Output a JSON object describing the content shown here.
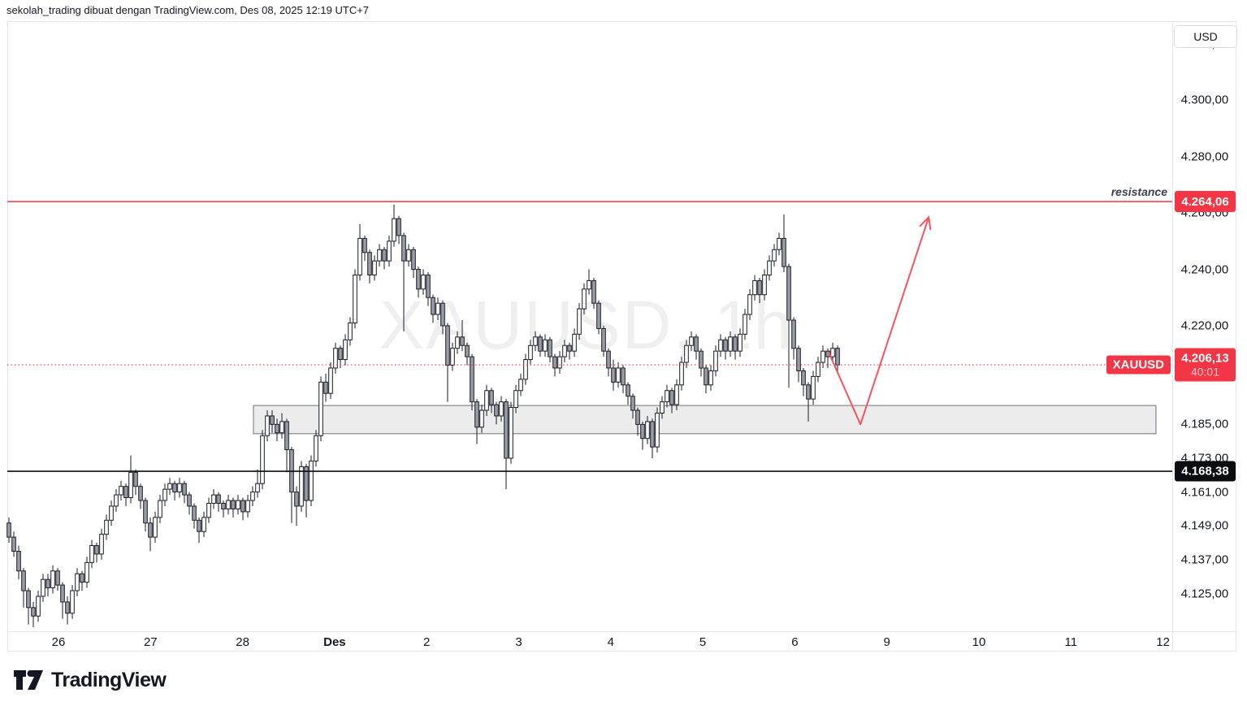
{
  "header": {
    "attribution": "sekolah_trading dibuat dengan TradingView.com, Des 08, 2025 12:19 UTC+7"
  },
  "currency_button": {
    "label": "USD"
  },
  "watermark": "XAUUSD, 1h",
  "footer": {
    "brand": "TradingView"
  },
  "colors": {
    "red": "#f23645",
    "arrow_red": "#f7525f",
    "black_line": "#0c0d12",
    "candle_border": "#181b24",
    "candle_up": "#ffffff",
    "candle_down": "#9a9da6",
    "zone_fill": "#ececec",
    "zone_border": "#6f727d",
    "frame": "#e4e6ee",
    "text": "#131722"
  },
  "chart_data": {
    "type": "candlestick",
    "symbol": "XAUUSD",
    "interval": "1h",
    "title": "XAUUSD, 1h",
    "ylim": [
      4111.6,
      4327.5
    ],
    "grid": false,
    "y_ticks": [
      {
        "price": 4320,
        "label": "4.320,00"
      },
      {
        "price": 4300,
        "label": "4.300,00"
      },
      {
        "price": 4280,
        "label": "4.280,00"
      },
      {
        "price": 4260,
        "label": "4.260,00"
      },
      {
        "price": 4240,
        "label": "4.240,00"
      },
      {
        "price": 4220,
        "label": "4.220,00"
      },
      {
        "price": 4185,
        "label": "4.185,00"
      },
      {
        "price": 4173,
        "label": "4.173,00"
      },
      {
        "price": 4161,
        "label": "4.161,00"
      },
      {
        "price": 4149,
        "label": "4.149,00"
      },
      {
        "price": 4137,
        "label": "4.137,00"
      },
      {
        "price": 4125,
        "label": "4.125,00"
      }
    ],
    "x_ticks": [
      {
        "label": "26"
      },
      {
        "label": "27"
      },
      {
        "label": "28"
      },
      {
        "label": "Des",
        "bold": true
      },
      {
        "label": "2"
      },
      {
        "label": "3"
      },
      {
        "label": "4"
      },
      {
        "label": "5"
      },
      {
        "label": "6"
      },
      {
        "label": "9"
      },
      {
        "label": "10"
      },
      {
        "label": "11"
      },
      {
        "label": "12"
      }
    ],
    "lines": {
      "resistance": {
        "price": 4264.06,
        "label": "resistance",
        "badge": "4.264,06",
        "style": "solid"
      },
      "support": {
        "price": 4168.38,
        "badge": "4.168,38",
        "style": "solid"
      },
      "last_price": {
        "price": 4206.13,
        "badge": "4.206,13",
        "countdown": "40:01",
        "symbol_label": "XAUUSD",
        "style": "dotted"
      }
    },
    "zone": {
      "price_top": 4191.7,
      "price_bottom": 4181.7,
      "from_candle_index": 51
    },
    "arrow": {
      "points": [
        [
          168.2,
          4210.5
        ],
        [
          174.7,
          4185.0
        ],
        [
          188.7,
          4258.5
        ]
      ]
    },
    "candles": [
      [
        4150,
        4152,
        4143,
        4145
      ],
      [
        4145,
        4147,
        4138,
        4140
      ],
      [
        4140,
        4142,
        4130,
        4133
      ],
      [
        4133,
        4134,
        4120,
        4126
      ],
      [
        4126,
        4127,
        4114,
        4120
      ],
      [
        4120,
        4122,
        4113,
        4117
      ],
      [
        4117,
        4126,
        4115,
        4124
      ],
      [
        4124,
        4132,
        4122,
        4130
      ],
      [
        4130,
        4132,
        4124,
        4127
      ],
      [
        4127,
        4135,
        4125,
        4133
      ],
      [
        4133,
        4134,
        4126,
        4128
      ],
      [
        4128,
        4129,
        4116,
        4122
      ],
      [
        4122,
        4124,
        4114,
        4118
      ],
      [
        4118,
        4128,
        4116,
        4126
      ],
      [
        4126,
        4134,
        4124,
        4132
      ],
      [
        4132,
        4133,
        4126,
        4129
      ],
      [
        4129,
        4138,
        4127,
        4136
      ],
      [
        4136,
        4144,
        4134,
        4142
      ],
      [
        4142,
        4143,
        4136,
        4139
      ],
      [
        4139,
        4148,
        4137,
        4146
      ],
      [
        4146,
        4153,
        4144,
        4151
      ],
      [
        4151,
        4158,
        4149,
        4156
      ],
      [
        4156,
        4162,
        4154,
        4160
      ],
      [
        4160,
        4165,
        4158,
        4163
      ],
      [
        4163,
        4164,
        4156,
        4159
      ],
      [
        4159,
        4174,
        4157,
        4168
      ],
      [
        4168,
        4169,
        4160,
        4163
      ],
      [
        4163,
        4164,
        4155,
        4158
      ],
      [
        4158,
        4159,
        4147,
        4150
      ],
      [
        4150,
        4152,
        4140,
        4145
      ],
      [
        4145,
        4154,
        4143,
        4152
      ],
      [
        4152,
        4160,
        4150,
        4158
      ],
      [
        4158,
        4164,
        4156,
        4162
      ],
      [
        4162,
        4166,
        4160,
        4164
      ],
      [
        4164,
        4165,
        4158,
        4161
      ],
      [
        4161,
        4166,
        4159,
        4164
      ],
      [
        4164,
        4165,
        4157,
        4160
      ],
      [
        4160,
        4161,
        4153,
        4156
      ],
      [
        4156,
        4157,
        4148,
        4151
      ],
      [
        4151,
        4152,
        4143,
        4147
      ],
      [
        4147,
        4154,
        4145,
        4152
      ],
      [
        4152,
        4159,
        4150,
        4157
      ],
      [
        4157,
        4162,
        4155,
        4160
      ],
      [
        4160,
        4161,
        4154,
        4157
      ],
      [
        4157,
        4158,
        4152,
        4155
      ],
      [
        4155,
        4160,
        4153,
        4158
      ],
      [
        4158,
        4159,
        4152,
        4155
      ],
      [
        4155,
        4160,
        4153,
        4158
      ],
      [
        4158,
        4159,
        4151,
        4154
      ],
      [
        4154,
        4160,
        4152,
        4158
      ],
      [
        4158,
        4163,
        4156,
        4161
      ],
      [
        4161,
        4169,
        4159,
        4164
      ],
      [
        4164,
        4183,
        4162,
        4181
      ],
      [
        4181,
        4190,
        4179,
        4188
      ],
      [
        4188,
        4190,
        4182,
        4185
      ],
      [
        4185,
        4187,
        4179,
        4182
      ],
      [
        4182,
        4189,
        4180,
        4186
      ],
      [
        4186,
        4187,
        4168,
        4176
      ],
      [
        4176,
        4177,
        4150,
        4161
      ],
      [
        4161,
        4163,
        4149,
        4156
      ],
      [
        4156,
        4172,
        4154,
        4170
      ],
      [
        4170,
        4171,
        4152,
        4158
      ],
      [
        4158,
        4174,
        4156,
        4172
      ],
      [
        4172,
        4183,
        4170,
        4181
      ],
      [
        4181,
        4202,
        4179,
        4200
      ],
      [
        4200,
        4203,
        4193,
        4196
      ],
      [
        4196,
        4207,
        4194,
        4205
      ],
      [
        4205,
        4214,
        4203,
        4212
      ],
      [
        4212,
        4213,
        4205,
        4208
      ],
      [
        4208,
        4217,
        4206,
        4215
      ],
      [
        4215,
        4223,
        4213,
        4221
      ],
      [
        4221,
        4240,
        4219,
        4238
      ],
      [
        4238,
        4256,
        4236,
        4251
      ],
      [
        4251,
        4252,
        4243,
        4246
      ],
      [
        4246,
        4247,
        4235,
        4238
      ],
      [
        4238,
        4245,
        4236,
        4243
      ],
      [
        4243,
        4249,
        4241,
        4247
      ],
      [
        4247,
        4248,
        4240,
        4243
      ],
      [
        4243,
        4252,
        4241,
        4250
      ],
      [
        4250,
        4263,
        4248,
        4258
      ],
      [
        4258,
        4259,
        4249,
        4252
      ],
      [
        4252,
        4253,
        4218,
        4243
      ],
      [
        4243,
        4249,
        4241,
        4247
      ],
      [
        4247,
        4248,
        4237,
        4240
      ],
      [
        4240,
        4241,
        4230,
        4233
      ],
      [
        4233,
        4240,
        4231,
        4238
      ],
      [
        4238,
        4239,
        4227,
        4230
      ],
      [
        4230,
        4231,
        4221,
        4224
      ],
      [
        4224,
        4230,
        4222,
        4228
      ],
      [
        4228,
        4229,
        4217,
        4220
      ],
      [
        4220,
        4221,
        4193,
        4206
      ],
      [
        4206,
        4214,
        4204,
        4212
      ],
      [
        4212,
        4218,
        4210,
        4216
      ],
      [
        4216,
        4222,
        4211,
        4213
      ],
      [
        4213,
        4214,
        4206,
        4209
      ],
      [
        4209,
        4210,
        4190,
        4193
      ],
      [
        4193,
        4194,
        4178,
        4184
      ],
      [
        4184,
        4192,
        4182,
        4190
      ],
      [
        4190,
        4199,
        4188,
        4197
      ],
      [
        4197,
        4198,
        4189,
        4192
      ],
      [
        4192,
        4193,
        4185,
        4188
      ],
      [
        4188,
        4195,
        4186,
        4193
      ],
      [
        4193,
        4194,
        4162,
        4173
      ],
      [
        4173,
        4193,
        4171,
        4191
      ],
      [
        4191,
        4199,
        4189,
        4197
      ],
      [
        4197,
        4203,
        4195,
        4201
      ],
      [
        4201,
        4210,
        4199,
        4208
      ],
      [
        4208,
        4215,
        4206,
        4213
      ],
      [
        4213,
        4218,
        4211,
        4216
      ],
      [
        4216,
        4217,
        4209,
        4211
      ],
      [
        4211,
        4217,
        4209,
        4215
      ],
      [
        4215,
        4216,
        4207,
        4209
      ],
      [
        4209,
        4210,
        4202,
        4205
      ],
      [
        4205,
        4211,
        4203,
        4209
      ],
      [
        4209,
        4215,
        4207,
        4213
      ],
      [
        4213,
        4214,
        4208,
        4211
      ],
      [
        4211,
        4219,
        4209,
        4217
      ],
      [
        4217,
        4228,
        4215,
        4226
      ],
      [
        4226,
        4235,
        4224,
        4233
      ],
      [
        4233,
        4240,
        4231,
        4236
      ],
      [
        4236,
        4237,
        4226,
        4228
      ],
      [
        4228,
        4229,
        4217,
        4219
      ],
      [
        4219,
        4220,
        4209,
        4211
      ],
      [
        4211,
        4212,
        4202,
        4205
      ],
      [
        4205,
        4208,
        4197,
        4200
      ],
      [
        4200,
        4207,
        4198,
        4205
      ],
      [
        4205,
        4206,
        4196,
        4199
      ],
      [
        4199,
        4200,
        4192,
        4195
      ],
      [
        4195,
        4196,
        4187,
        4190
      ],
      [
        4190,
        4191,
        4181,
        4185
      ],
      [
        4185,
        4186,
        4176,
        4180
      ],
      [
        4180,
        4188,
        4178,
        4186
      ],
      [
        4186,
        4187,
        4173,
        4177
      ],
      [
        4177,
        4191,
        4175,
        4189
      ],
      [
        4189,
        4195,
        4187,
        4193
      ],
      [
        4193,
        4199,
        4191,
        4197
      ],
      [
        4197,
        4198,
        4189,
        4192
      ],
      [
        4192,
        4201,
        4190,
        4199
      ],
      [
        4199,
        4209,
        4197,
        4207
      ],
      [
        4207,
        4215,
        4205,
        4213
      ],
      [
        4213,
        4218,
        4211,
        4216
      ],
      [
        4216,
        4217,
        4208,
        4211
      ],
      [
        4211,
        4212,
        4202,
        4205
      ],
      [
        4205,
        4206,
        4196,
        4199
      ],
      [
        4199,
        4206,
        4197,
        4204
      ],
      [
        4204,
        4213,
        4202,
        4211
      ],
      [
        4211,
        4217,
        4209,
        4215
      ],
      [
        4215,
        4216,
        4208,
        4211
      ],
      [
        4211,
        4218,
        4209,
        4216
      ],
      [
        4216,
        4217,
        4208,
        4211
      ],
      [
        4211,
        4219,
        4209,
        4217
      ],
      [
        4217,
        4226,
        4215,
        4224
      ],
      [
        4224,
        4233,
        4222,
        4231
      ],
      [
        4231,
        4238,
        4229,
        4236
      ],
      [
        4236,
        4237,
        4228,
        4231
      ],
      [
        4231,
        4240,
        4229,
        4238
      ],
      [
        4238,
        4245,
        4236,
        4243
      ],
      [
        4243,
        4249,
        4241,
        4247
      ],
      [
        4247,
        4253,
        4245,
        4251
      ],
      [
        4251,
        4259.5,
        4239,
        4241
      ],
      [
        4241,
        4242,
        4198,
        4222
      ],
      [
        4222,
        4223,
        4208,
        4212
      ],
      [
        4212,
        4213,
        4200,
        4204
      ],
      [
        4204,
        4205,
        4195,
        4199
      ],
      [
        4199,
        4200,
        4186,
        4194
      ],
      [
        4194,
        4204,
        4192,
        4202
      ],
      [
        4202,
        4209,
        4200,
        4207
      ],
      [
        4207,
        4213,
        4205,
        4211
      ],
      [
        4211,
        4212,
        4205,
        4209
      ],
      [
        4209,
        4214,
        4207,
        4212
      ],
      [
        4212,
        4213,
        4203,
        4206.1
      ]
    ]
  }
}
